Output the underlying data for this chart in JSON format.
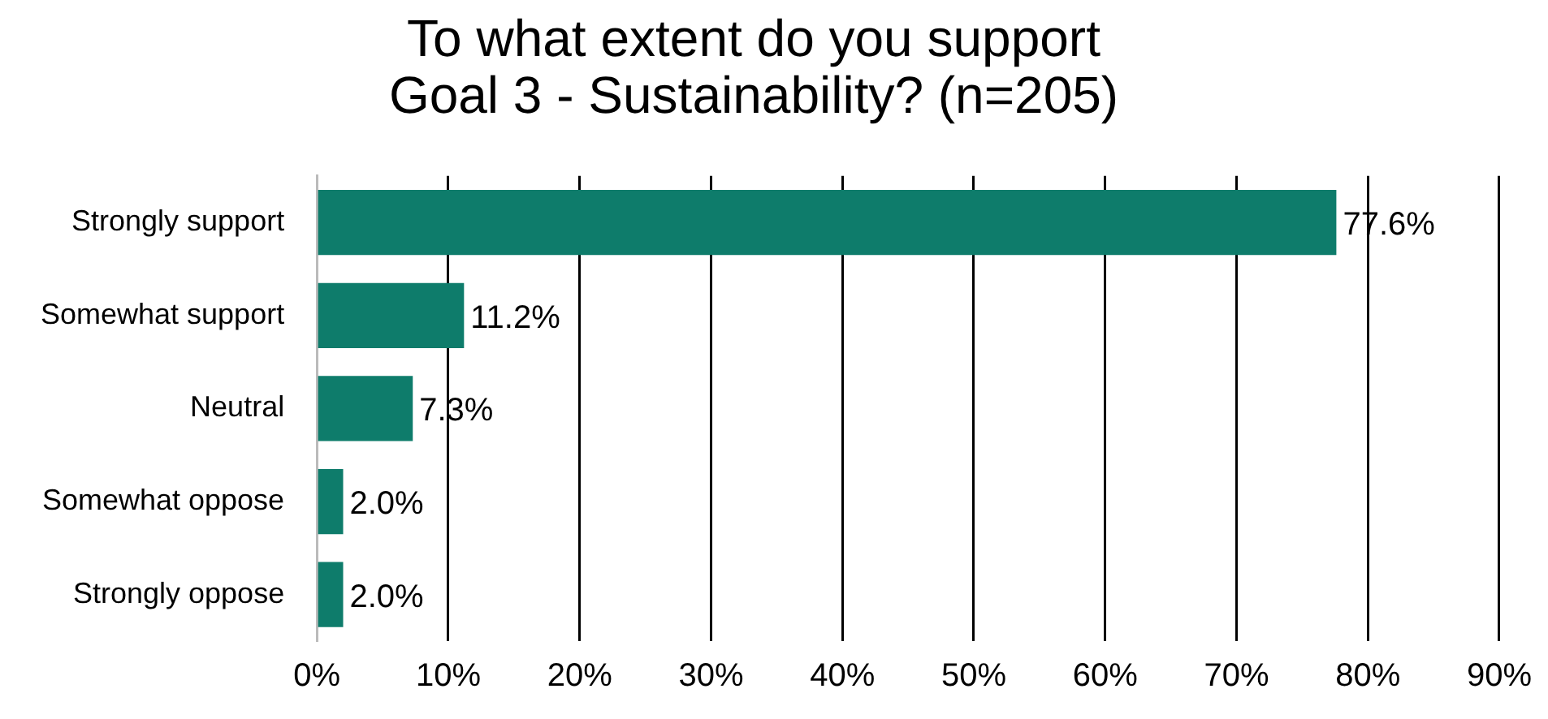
{
  "chart_data": {
    "type": "bar",
    "orientation": "horizontal",
    "title": "To what extent do you support\nGoal 3 - Sustainability? (n=205)",
    "categories": [
      "Strongly support",
      "Somewhat support",
      "Neutral",
      "Somewhat oppose",
      "Strongly oppose"
    ],
    "values": [
      77.6,
      11.2,
      7.3,
      2.0,
      2.0
    ],
    "value_labels": [
      "77.6%",
      "11.2%",
      "7.3%",
      "2.0%",
      "2.0%"
    ],
    "color": "#0e7c6b",
    "xlim": [
      0,
      90
    ],
    "xticks": [
      {
        "value": 0,
        "label": "0%"
      },
      {
        "value": 10,
        "label": "10%"
      },
      {
        "value": 20,
        "label": "20%"
      },
      {
        "value": 30,
        "label": "30%"
      },
      {
        "value": 40,
        "label": "40%"
      },
      {
        "value": 50,
        "label": "50%"
      },
      {
        "value": 60,
        "label": "60%"
      },
      {
        "value": 70,
        "label": "70%"
      },
      {
        "value": 80,
        "label": "80%"
      },
      {
        "value": 90,
        "label": "90%"
      }
    ],
    "grid": "x",
    "legend": false
  }
}
